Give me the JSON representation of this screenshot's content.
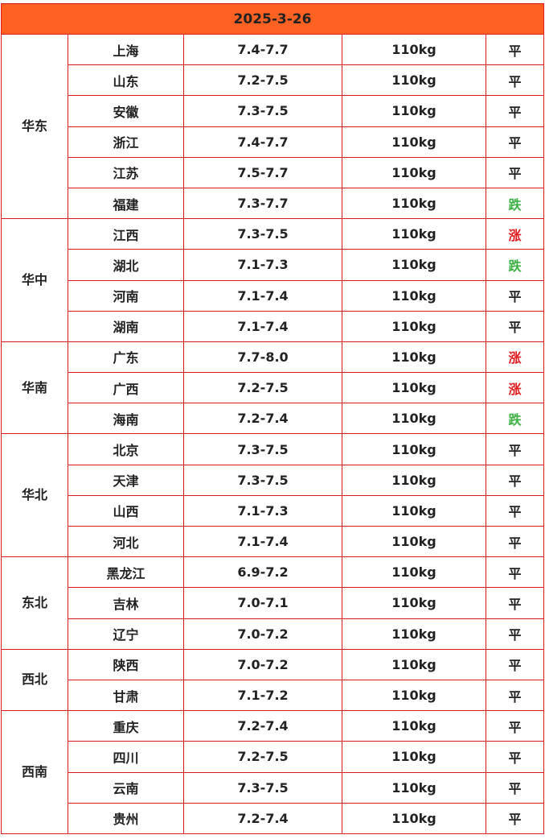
{
  "title": "2025-3-26",
  "colors": {
    "header": "#ff6122",
    "border": "#e0191c",
    "up": "#e0191c",
    "down": "#3cb043"
  },
  "regions": [
    {
      "name": "华东",
      "rows": [
        [
          "上海",
          "7.4-7.7",
          "110kg",
          "平"
        ],
        [
          "山东",
          "7.2-7.5",
          "110kg",
          "平"
        ],
        [
          "安徽",
          "7.3-7.5",
          "110kg",
          "平"
        ],
        [
          "浙江",
          "7.4-7.7",
          "110kg",
          "平"
        ],
        [
          "江苏",
          "7.5-7.7",
          "110kg",
          "平"
        ],
        [
          "福建",
          "7.3-7.7",
          "110kg",
          "跌"
        ]
      ]
    },
    {
      "name": "华中",
      "rows": [
        [
          "江西",
          "7.3-7.5",
          "110kg",
          "涨"
        ],
        [
          "湖北",
          "7.1-7.3",
          "110kg",
          "跌"
        ],
        [
          "河南",
          "7.1-7.4",
          "110kg",
          "平"
        ],
        [
          "湖南",
          "7.1-7.4",
          "110kg",
          "平"
        ]
      ]
    },
    {
      "name": "华南",
      "rows": [
        [
          "广东",
          "7.7-8.0",
          "110kg",
          "涨"
        ],
        [
          "广西",
          "7.2-7.5",
          "110kg",
          "涨"
        ],
        [
          "海南",
          "7.2-7.4",
          "110kg",
          "跌"
        ]
      ]
    },
    {
      "name": "华北",
      "rows": [
        [
          "北京",
          "7.3-7.5",
          "110kg",
          "平"
        ],
        [
          "天津",
          "7.3-7.5",
          "110kg",
          "平"
        ],
        [
          "山西",
          "7.1-7.3",
          "110kg",
          "平"
        ],
        [
          "河北",
          "7.1-7.4",
          "110kg",
          "平"
        ]
      ]
    },
    {
      "name": "东北",
      "rows": [
        [
          "黑龙江",
          "6.9-7.2",
          "110kg",
          "平"
        ],
        [
          "吉林",
          "7.0-7.1",
          "110kg",
          "平"
        ],
        [
          "辽宁",
          "7.0-7.2",
          "110kg",
          "平"
        ]
      ]
    },
    {
      "name": "西北",
      "rows": [
        [
          "陕西",
          "7.0-7.2",
          "110kg",
          "平"
        ],
        [
          "甘肃",
          "7.1-7.2",
          "110kg",
          "平"
        ]
      ]
    },
    {
      "name": "西南",
      "rows": [
        [
          "重庆",
          "7.2-7.4",
          "110kg",
          "平"
        ],
        [
          "四川",
          "7.2-7.5",
          "110kg",
          "平"
        ],
        [
          "云南",
          "7.3-7.5",
          "110kg",
          "平"
        ],
        [
          "贵州",
          "7.2-7.4",
          "110kg",
          "平"
        ]
      ]
    }
  ]
}
